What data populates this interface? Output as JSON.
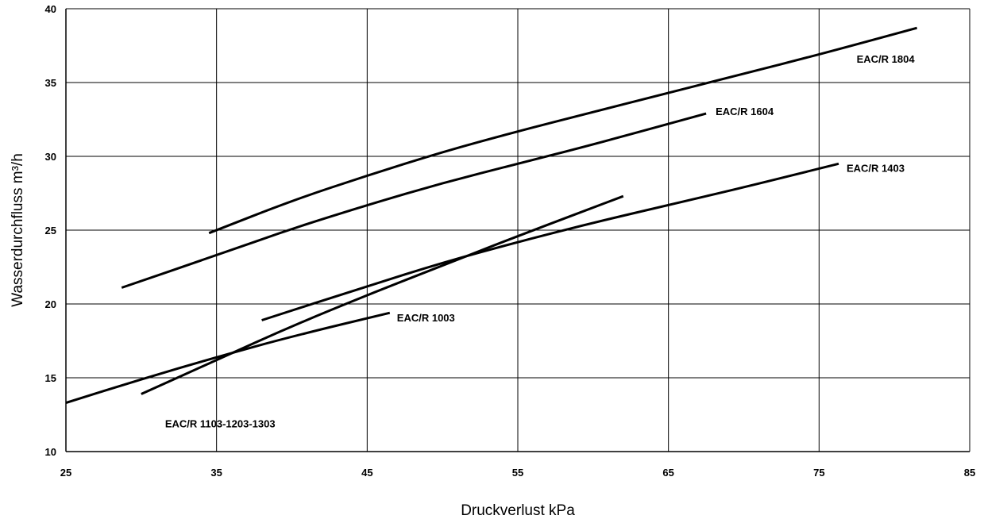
{
  "chart_data": {
    "type": "line",
    "xlabel": "Druckverlust kPa",
    "ylabel": "Wasserdurchfluss m³/h",
    "xlim": [
      25,
      85
    ],
    "ylim": [
      10,
      40
    ],
    "xticks": [
      25,
      35,
      45,
      55,
      65,
      75,
      85
    ],
    "yticks": [
      10,
      15,
      20,
      25,
      30,
      35,
      40
    ],
    "grid": true,
    "legend": "none (labels placed next to lines)",
    "line_color": "#000000",
    "series": [
      {
        "name": "EAC/R 1804",
        "x": [
          34.5,
          40,
          45,
          50,
          55,
          60,
          65,
          70,
          75,
          81.5
        ],
        "y": [
          24.8,
          27.0,
          28.7,
          30.3,
          31.7,
          33.0,
          34.3,
          35.6,
          36.9,
          38.7
        ]
      },
      {
        "name": "EAC/R 1604",
        "x": [
          28.7,
          35,
          40,
          45,
          50,
          55,
          60,
          67.5
        ],
        "y": [
          21.1,
          23.3,
          25.1,
          26.7,
          28.2,
          29.5,
          30.8,
          32.9
        ]
      },
      {
        "name": "EAC/R 1403",
        "x": [
          38,
          45,
          50,
          55,
          60,
          65,
          70,
          76.3
        ],
        "y": [
          18.9,
          21.2,
          22.8,
          24.2,
          25.5,
          26.7,
          27.9,
          29.5
        ]
      },
      {
        "name": "EAC/R 1103-1203-1303",
        "x": [
          30,
          35,
          40,
          45,
          50,
          55,
          62
        ],
        "y": [
          13.9,
          16.2,
          18.5,
          20.6,
          22.6,
          24.6,
          27.3
        ]
      },
      {
        "name": "EAC/R 1003",
        "x": [
          25,
          30,
          35,
          40,
          46.5
        ],
        "y": [
          13.3,
          14.9,
          16.4,
          17.8,
          19.4
        ]
      }
    ]
  }
}
